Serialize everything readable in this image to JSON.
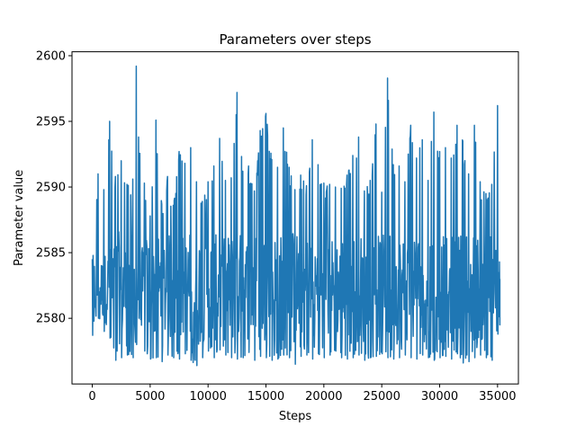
{
  "chart_data": {
    "type": "line",
    "title": "Parameters over steps",
    "xlabel": "Steps",
    "ylabel": "Parameter value",
    "xlim": [
      -1750,
      36800
    ],
    "ylim": [
      2575.0,
      2600.3
    ],
    "xticks": [
      0,
      5000,
      10000,
      15000,
      20000,
      25000,
      30000,
      35000
    ],
    "yticks": [
      2580,
      2585,
      2590,
      2595,
      2600
    ],
    "grid": false,
    "colors": {
      "series": "#1f77b4",
      "axes": "#000000",
      "background": "#ffffff"
    },
    "series": [
      {
        "name": "",
        "x": [
          0,
          500,
          1000,
          1500,
          2000,
          2500,
          3000,
          3500,
          3800,
          4000,
          4500,
          5000,
          5500,
          6000,
          6500,
          7000,
          7500,
          8000,
          8500,
          9000,
          9500,
          10000,
          10500,
          11000,
          11500,
          12000,
          12500,
          13000,
          13500,
          14000,
          14500,
          15000,
          15500,
          16000,
          16500,
          17000,
          17500,
          18000,
          18500,
          19000,
          19500,
          20000,
          20500,
          21000,
          21500,
          22000,
          22500,
          23000,
          23500,
          24000,
          24500,
          25000,
          25500,
          26000,
          26500,
          27000,
          27500,
          28000,
          28500,
          29000,
          29500,
          30000,
          30500,
          31000,
          31500,
          32000,
          32500,
          33000,
          33500,
          34000,
          34500,
          35000,
          35200
        ],
        "y_min": [
          2578.7,
          2580.0,
          2579.0,
          2578.5,
          2576.8,
          2577.0,
          2577.2,
          2577.0,
          2578.0,
          2580.0,
          2577.5,
          2576.9,
          2577.0,
          2576.7,
          2577.2,
          2577.0,
          2576.9,
          2577.3,
          2576.8,
          2576.4,
          2577.0,
          2577.5,
          2577.0,
          2577.6,
          2577.2,
          2577.0,
          2576.9,
          2577.0,
          2577.4,
          2576.8,
          2577.1,
          2577.0,
          2576.8,
          2576.9,
          2577.2,
          2577.0,
          2576.5,
          2577.1,
          2577.2,
          2576.9,
          2577.3,
          2577.0,
          2577.2,
          2577.5,
          2577.0,
          2576.9,
          2577.0,
          2577.2,
          2576.8,
          2577.0,
          2577.1,
          2577.3,
          2577.0,
          2576.9,
          2577.0,
          2577.2,
          2577.0,
          2576.9,
          2577.2,
          2577.0,
          2576.8,
          2577.0,
          2577.1,
          2576.9,
          2577.3,
          2576.6,
          2576.7,
          2577.0,
          2577.2,
          2577.0,
          2576.8,
          2578.8,
          2579.5
        ],
        "y_max": [
          2584.5,
          2591.0,
          2589.8,
          2595.0,
          2590.8,
          2592.0,
          2590.2,
          2590.6,
          2599.2,
          2593.8,
          2590.3,
          2587.8,
          2595.1,
          2588.7,
          2590.8,
          2588.6,
          2592.7,
          2591.8,
          2593.0,
          2590.4,
          2588.9,
          2590.4,
          2591.6,
          2593.7,
          2590.5,
          2590.7,
          2597.2,
          2591.2,
          2591.6,
          2589.7,
          2594.3,
          2595.6,
          2592.1,
          2591.5,
          2594.5,
          2591.5,
          2589.8,
          2590.9,
          2590.1,
          2593.6,
          2591.7,
          2590.3,
          2590.2,
          2590.0,
          2589.9,
          2590.9,
          2592.4,
          2593.8,
          2589.7,
          2590.5,
          2594.8,
          2589.6,
          2598.3,
          2591.7,
          2591.6,
          2590.4,
          2594.7,
          2592.2,
          2593.6,
          2590.5,
          2595.7,
          2592.7,
          2593.0,
          2592.2,
          2594.7,
          2593.5,
          2591.0,
          2594.7,
          2590.4,
          2589.5,
          2590.2,
          2596.2,
          2583.0
        ]
      }
    ]
  }
}
